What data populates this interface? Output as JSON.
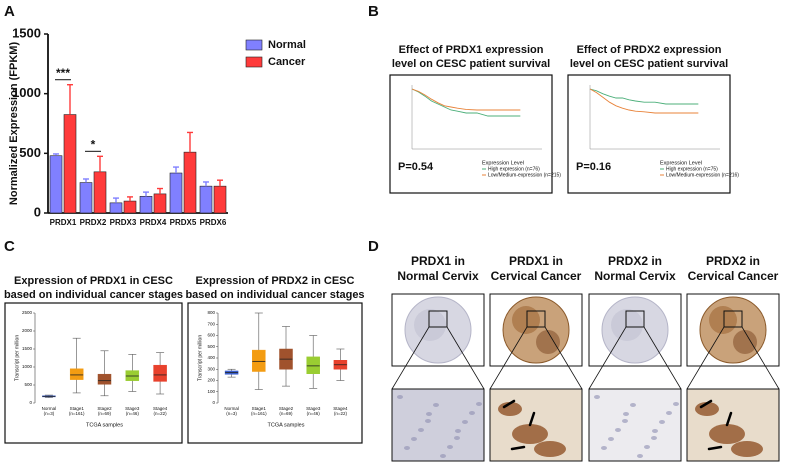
{
  "panel_labels": [
    "A",
    "B",
    "C",
    "D"
  ],
  "chart_data": [
    {
      "type": "bar",
      "ylabel": "Normalized Expression (FPKM)",
      "categories": [
        "PRDX1",
        "PRDX2",
        "PRDX3",
        "PRDX4",
        "PRDX5",
        "PRDX6"
      ],
      "series": [
        {
          "name": "Normal",
          "color": "#8080ff",
          "values": [
            480,
            255,
            85,
            140,
            335,
            225
          ],
          "errors": [
            15,
            30,
            40,
            35,
            50,
            35
          ]
        },
        {
          "name": "Cancer",
          "color": "#ff3b3b",
          "values": [
            825,
            345,
            100,
            160,
            510,
            225
          ],
          "errors": [
            250,
            130,
            35,
            45,
            165,
            50
          ]
        }
      ],
      "annotations": [
        "***",
        "*"
      ],
      "ylim": [
        0,
        1500
      ],
      "yticks": [
        0,
        500,
        1000,
        1500
      ]
    },
    {
      "type": "line",
      "title": [
        "Effect of PRDX1 expression",
        "level on CESC patient survival"
      ],
      "x": [
        0,
        300,
        600,
        900,
        1200,
        1500,
        1800,
        2100,
        2500,
        3000,
        3500,
        4000,
        5000
      ],
      "series": [
        {
          "name": "High expression (n=76)",
          "color": "#4caf7a",
          "values": [
            1,
            0.95,
            0.88,
            0.8,
            0.75,
            0.7,
            0.65,
            0.63,
            0.6,
            0.6,
            0.55,
            0.55,
            0.55
          ]
        },
        {
          "name": "Low/Medium-expression (n=215)",
          "color": "#e8833a",
          "values": [
            1,
            0.96,
            0.9,
            0.83,
            0.77,
            0.72,
            0.7,
            0.68,
            0.66,
            0.65,
            0.65,
            0.65,
            0.65
          ]
        }
      ],
      "legend_title": "Expression Level",
      "annotation": "P=0.54",
      "xlim": [
        0,
        6000
      ],
      "ylim": [
        0,
        1
      ]
    },
    {
      "type": "line",
      "title": [
        "Effect of PRDX2 expression",
        "level on CESC patient survival"
      ],
      "x": [
        0,
        300,
        600,
        900,
        1200,
        1500,
        1800,
        2100,
        2500,
        3000,
        3500,
        4000,
        5000
      ],
      "series": [
        {
          "name": "High expression (n=75)",
          "color": "#4caf7a",
          "values": [
            1,
            0.97,
            0.92,
            0.88,
            0.85,
            0.85,
            0.82,
            0.8,
            0.78,
            0.78,
            0.75,
            0.75,
            0.75
          ]
        },
        {
          "name": "Low/Medium-expression (n=216)",
          "color": "#e8833a",
          "values": [
            1,
            0.94,
            0.86,
            0.78,
            0.72,
            0.68,
            0.65,
            0.63,
            0.62,
            0.6,
            0.6,
            0.6,
            0.6
          ]
        }
      ],
      "legend_title": "Expression Level",
      "annotation": "P=0.16",
      "xlim": [
        0,
        6000
      ],
      "ylim": [
        0,
        1
      ]
    },
    {
      "type": "box",
      "title": [
        "Expression of PRDX1 in CESC",
        "based on individual cancer stages"
      ],
      "xlabel": "TCGA samples",
      "ylabel": "Transcript per million",
      "categories": [
        "Normal",
        "Stage1",
        "Stage2",
        "Stage3",
        "Stage4"
      ],
      "counts": [
        "(n=3)",
        "(n=161)",
        "(n=69)",
        "(n=46)",
        "(n=22)"
      ],
      "colors": [
        "#3a5fcd",
        "#f39c12",
        "#a0522d",
        "#9acd32",
        "#e8412c"
      ],
      "boxes": [
        {
          "min": 150,
          "q1": 170,
          "median": 185,
          "q3": 200,
          "max": 220
        },
        {
          "min": 280,
          "q1": 650,
          "median": 780,
          "q3": 950,
          "max": 1800
        },
        {
          "min": 200,
          "q1": 520,
          "median": 620,
          "q3": 800,
          "max": 1450
        },
        {
          "min": 320,
          "q1": 620,
          "median": 750,
          "q3": 900,
          "max": 1350
        },
        {
          "min": 250,
          "q1": 600,
          "median": 780,
          "q3": 1050,
          "max": 1400
        }
      ],
      "ylim": [
        0,
        2500
      ],
      "yticks": [
        0,
        500,
        1000,
        1500,
        2000,
        2500
      ]
    },
    {
      "type": "box",
      "title": [
        "Expression of PRDX2 in CESC",
        "based on individual cancer stages"
      ],
      "xlabel": "TCGA samples",
      "ylabel": "Transcript per million",
      "categories": [
        "Normal",
        "Stage1",
        "Stage2",
        "Stage3",
        "Stage4"
      ],
      "counts": [
        "(n=3)",
        "(n=161)",
        "(n=69)",
        "(n=46)",
        "(n=22)"
      ],
      "colors": [
        "#3a5fcd",
        "#f39c12",
        "#a0522d",
        "#9acd32",
        "#e8412c"
      ],
      "boxes": [
        {
          "min": 230,
          "q1": 255,
          "median": 270,
          "q3": 285,
          "max": 300
        },
        {
          "min": 120,
          "q1": 280,
          "median": 370,
          "q3": 470,
          "max": 800
        },
        {
          "min": 150,
          "q1": 300,
          "median": 390,
          "q3": 480,
          "max": 680
        },
        {
          "min": 130,
          "q1": 260,
          "median": 330,
          "q3": 410,
          "max": 600
        },
        {
          "min": 200,
          "q1": 300,
          "median": 340,
          "q3": 380,
          "max": 480
        }
      ],
      "ylim": [
        0,
        800
      ],
      "yticks": [
        0,
        100,
        200,
        300,
        400,
        500,
        600,
        700,
        800
      ]
    }
  ],
  "ihc": {
    "columns": [
      {
        "title": [
          "PRDX1 in",
          "Normal Cervix"
        ]
      },
      {
        "title": [
          "PRDX1 in",
          "Cervical Cancer"
        ]
      },
      {
        "title": [
          "PRDX2 in",
          "Normal Cervix"
        ]
      },
      {
        "title": [
          "PRDX2 in",
          "Cervical Cancer"
        ]
      }
    ]
  }
}
